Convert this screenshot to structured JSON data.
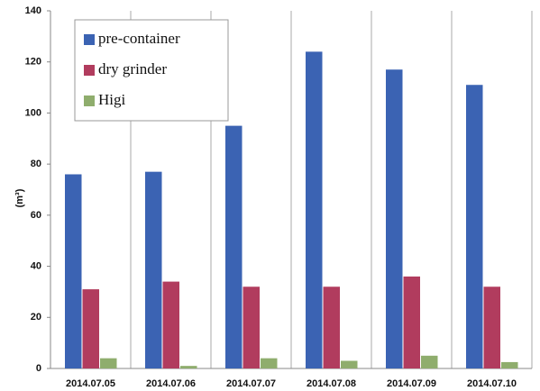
{
  "chart_data": {
    "type": "bar",
    "y_label": "(m³)",
    "categories": [
      "2014.07.05",
      "2014.07.06",
      "2014.07.07",
      "2014.07.08",
      "2014.07.09",
      "2014.07.10"
    ],
    "series": [
      {
        "name": "pre-container",
        "color": "#3b63b3",
        "values": [
          76,
          77,
          95,
          124,
          117,
          111
        ]
      },
      {
        "name": "dry grinder",
        "color": "#b13c5e",
        "values": [
          31,
          34,
          32,
          32,
          36,
          32
        ]
      },
      {
        "name": "Higi",
        "color": "#8fad6d",
        "values": [
          4,
          1,
          4,
          3,
          5,
          2.5
        ]
      }
    ],
    "ylim": [
      0,
      140
    ],
    "yticks": [
      0,
      20,
      40,
      60,
      80,
      100,
      120,
      140
    ],
    "legend": "top-left"
  }
}
